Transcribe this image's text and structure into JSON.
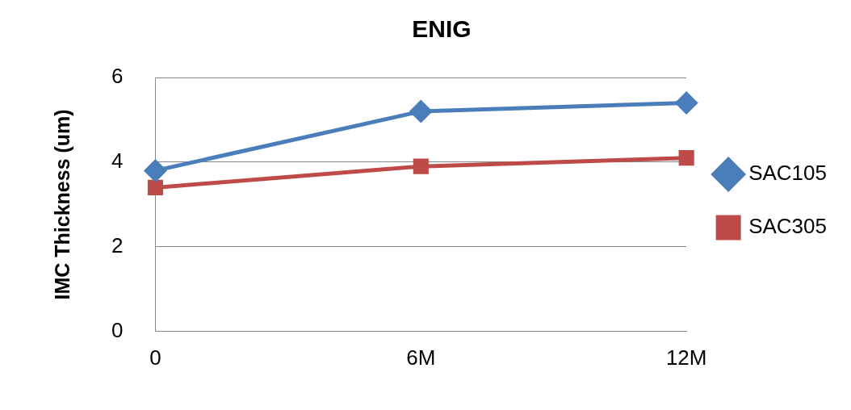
{
  "chart_data": {
    "type": "line",
    "title": "ENIG",
    "ylabel": "IMC Thickness (um)",
    "categories": [
      "0",
      "6M",
      "12M"
    ],
    "series": [
      {
        "name": "SAC105",
        "color": "#4a7ebb",
        "marker": "diamond",
        "values": [
          3.8,
          5.2,
          5.4
        ]
      },
      {
        "name": "SAC305",
        "color": "#be4b48",
        "marker": "square",
        "values": [
          3.4,
          3.9,
          4.1
        ]
      }
    ],
    "ylim": [
      0,
      6
    ],
    "yticks": [
      0,
      2,
      4,
      6
    ],
    "grid": "y",
    "legend": "right",
    "line_style": "solid"
  }
}
